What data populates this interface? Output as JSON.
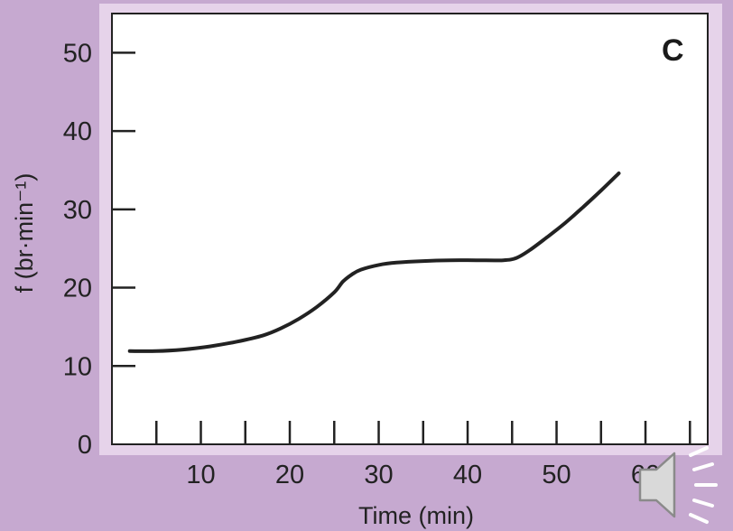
{
  "chart_data": {
    "type": "line",
    "panel_label": "C",
    "xlabel": "Time (min)",
    "ylabel": "f (br·min⁻¹)",
    "xlim": [
      0,
      67
    ],
    "ylim": [
      0,
      55
    ],
    "x_ticks": [
      5,
      10,
      15,
      20,
      25,
      30,
      35,
      40,
      45,
      50,
      55,
      60,
      65
    ],
    "x_tick_labels": [
      {
        "value": 10,
        "label": "10"
      },
      {
        "value": 20,
        "label": "20"
      },
      {
        "value": 30,
        "label": "30"
      },
      {
        "value": 40,
        "label": "40"
      },
      {
        "value": 50,
        "label": "50"
      },
      {
        "value": 60,
        "label": "60"
      }
    ],
    "y_ticks": [
      10,
      20,
      30,
      40,
      50
    ],
    "y_tick_labels": [
      {
        "value": 0,
        "label": "0"
      },
      {
        "value": 10,
        "label": "10"
      },
      {
        "value": 20,
        "label": "20"
      },
      {
        "value": 30,
        "label": "30"
      },
      {
        "value": 40,
        "label": "40"
      },
      {
        "value": 50,
        "label": "50"
      }
    ],
    "grid": false,
    "series": [
      {
        "x": [
          2,
          5,
          8,
          11,
          14,
          17,
          19,
          21,
          23,
          25,
          26,
          27,
          28,
          30,
          32,
          35,
          38,
          41,
          44,
          45.5,
          47,
          49,
          51,
          53,
          55,
          57
        ],
        "y": [
          11.9,
          11.9,
          12.1,
          12.5,
          13.1,
          13.9,
          14.8,
          16.0,
          17.5,
          19.4,
          20.8,
          21.7,
          22.3,
          22.9,
          23.2,
          23.4,
          23.5,
          23.5,
          23.5,
          23.8,
          24.8,
          26.5,
          28.3,
          30.3,
          32.4,
          34.6
        ]
      }
    ],
    "colors": {
      "background": "#c6a9d0",
      "plot_area": "#ffffff",
      "plot_border": "#e6d3ea",
      "line": "#222222"
    }
  },
  "speaker_icon": "speaker-icon"
}
